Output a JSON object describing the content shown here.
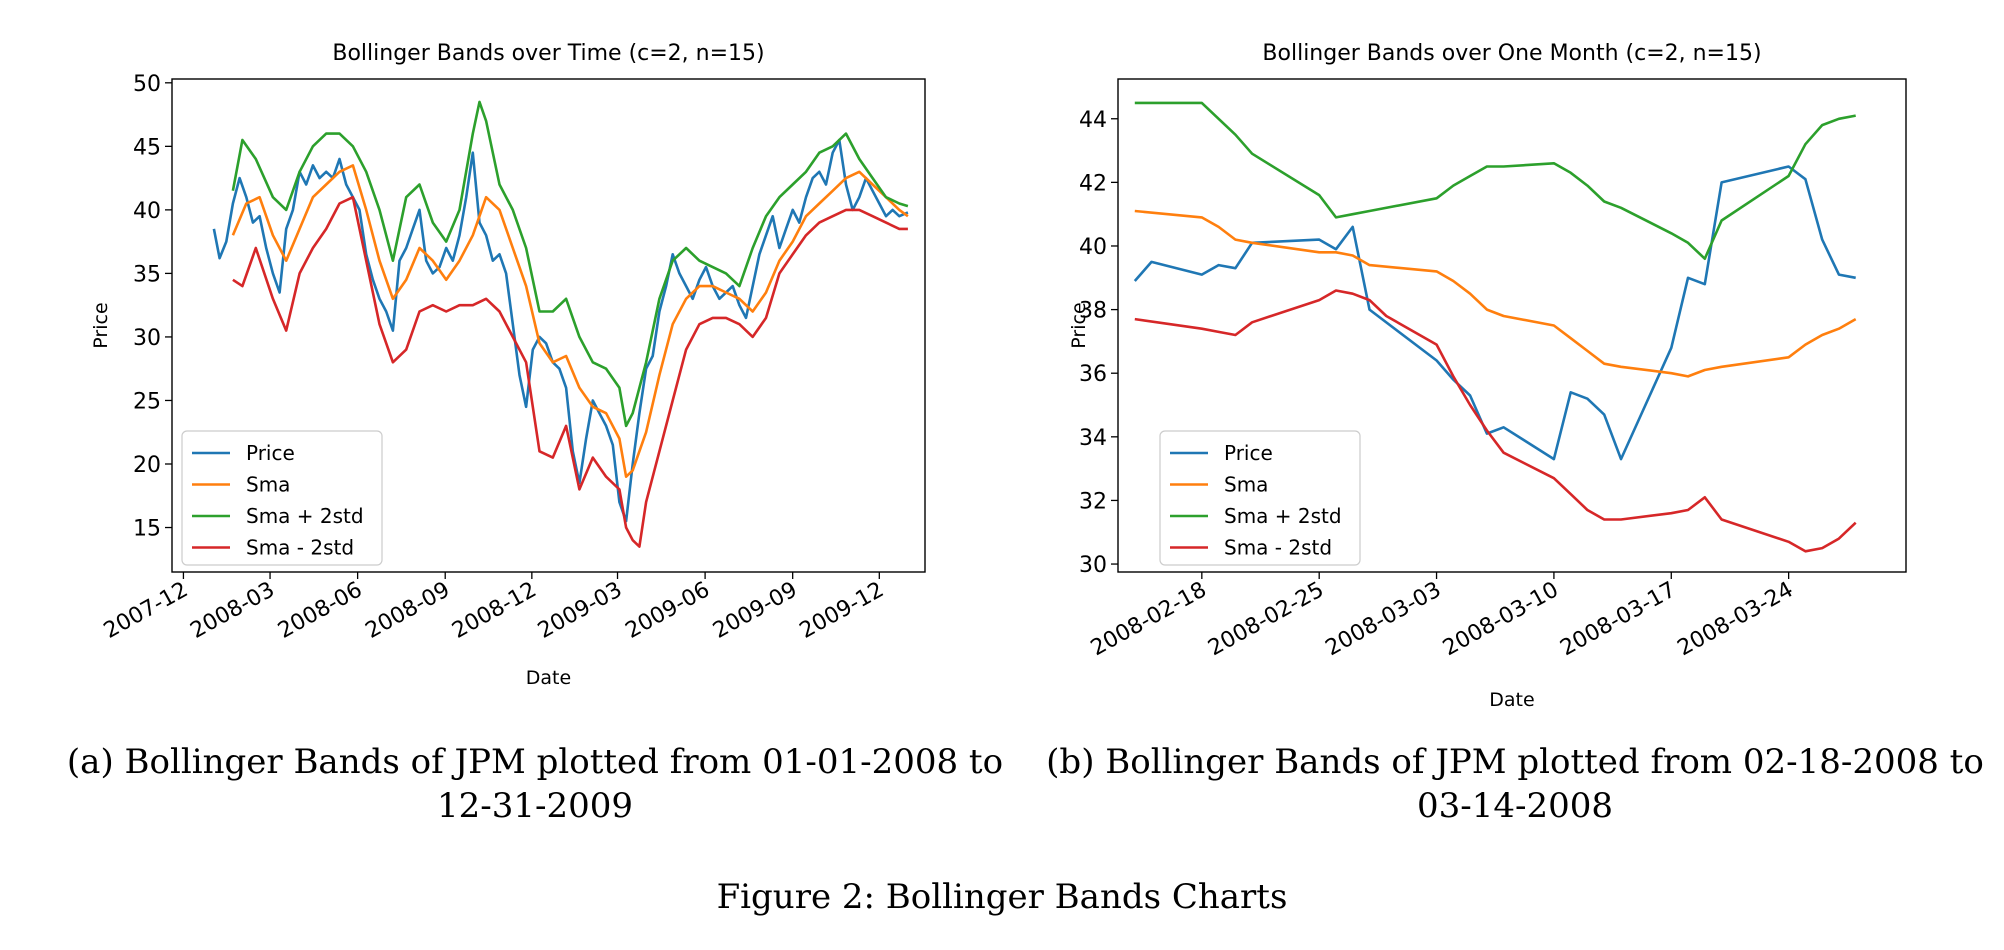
{
  "chart_data": [
    {
      "type": "line",
      "title": "Bollinger Bands over Time (c=2, n=15)",
      "xlabel": "Date",
      "ylabel": "Price",
      "xticks": [
        "2007-12",
        "2008-03",
        "2008-06",
        "2008-09",
        "2008-12",
        "2009-03",
        "2009-06",
        "2009-09",
        "2009-12"
      ],
      "yticks": [
        "15",
        "20",
        "25",
        "30",
        "35",
        "40",
        "45",
        "50"
      ],
      "xlim": [
        "2007-11-19",
        "2010-01-18"
      ],
      "ylim": [
        11.5,
        50.3
      ],
      "legend_position": "lower-left",
      "legend": [
        "Price",
        "Sma",
        "Sma + 2std",
        "Sma - 2std"
      ],
      "series": [
        {
          "name": "Price",
          "color": "#1f77b4",
          "x": [
            "2008-01-02",
            "2008-01-08",
            "2008-01-15",
            "2008-01-22",
            "2008-01-29",
            "2008-02-05",
            "2008-02-12",
            "2008-02-19",
            "2008-02-26",
            "2008-03-04",
            "2008-03-11",
            "2008-03-18",
            "2008-03-25",
            "2008-04-01",
            "2008-04-08",
            "2008-04-15",
            "2008-04-22",
            "2008-04-29",
            "2008-05-06",
            "2008-05-13",
            "2008-05-20",
            "2008-05-27",
            "2008-06-03",
            "2008-06-10",
            "2008-06-17",
            "2008-06-24",
            "2008-07-01",
            "2008-07-08",
            "2008-07-15",
            "2008-07-22",
            "2008-07-29",
            "2008-08-05",
            "2008-08-12",
            "2008-08-19",
            "2008-08-26",
            "2008-09-02",
            "2008-09-09",
            "2008-09-16",
            "2008-09-23",
            "2008-09-30",
            "2008-10-07",
            "2008-10-14",
            "2008-10-21",
            "2008-10-28",
            "2008-11-04",
            "2008-11-11",
            "2008-11-18",
            "2008-11-25",
            "2008-12-02",
            "2008-12-09",
            "2008-12-16",
            "2008-12-23",
            "2008-12-30",
            "2009-01-06",
            "2009-01-13",
            "2009-01-20",
            "2009-01-27",
            "2009-02-03",
            "2009-02-10",
            "2009-02-17",
            "2009-02-24",
            "2009-03-03",
            "2009-03-10",
            "2009-03-17",
            "2009-03-24",
            "2009-03-31",
            "2009-04-07",
            "2009-04-14",
            "2009-04-21",
            "2009-04-28",
            "2009-05-05",
            "2009-05-12",
            "2009-05-19",
            "2009-05-26",
            "2009-06-02",
            "2009-06-09",
            "2009-06-16",
            "2009-06-23",
            "2009-06-30",
            "2009-07-07",
            "2009-07-14",
            "2009-07-21",
            "2009-07-28",
            "2009-08-04",
            "2009-08-11",
            "2009-08-18",
            "2009-08-25",
            "2009-09-01",
            "2009-09-08",
            "2009-09-15",
            "2009-09-22",
            "2009-09-29",
            "2009-10-06",
            "2009-10-13",
            "2009-10-20",
            "2009-10-27",
            "2009-11-03",
            "2009-11-10",
            "2009-11-17",
            "2009-11-24",
            "2009-12-01",
            "2009-12-08",
            "2009-12-15",
            "2009-12-22",
            "2009-12-31"
          ],
          "y": [
            38.5,
            36.2,
            37.5,
            40.5,
            42.5,
            41.0,
            39.0,
            39.5,
            37.0,
            35.0,
            33.5,
            38.5,
            40.0,
            43.0,
            42.0,
            43.5,
            42.5,
            43.0,
            42.5,
            44.0,
            42.0,
            41.0,
            40.0,
            36.5,
            34.5,
            33.0,
            32.0,
            30.5,
            36.0,
            37.0,
            38.5,
            40.0,
            36.0,
            35.0,
            35.5,
            37.0,
            36.0,
            38.0,
            41.0,
            44.5,
            39.0,
            38.0,
            36.0,
            36.5,
            35.0,
            31.0,
            27.0,
            24.5,
            29.0,
            30.0,
            29.5,
            28.0,
            27.5,
            26.0,
            21.0,
            18.5,
            22.0,
            25.0,
            24.0,
            23.0,
            21.5,
            17.0,
            15.5,
            20.0,
            24.0,
            27.5,
            28.5,
            32.0,
            34.0,
            36.5,
            35.0,
            34.0,
            33.0,
            34.5,
            35.5,
            34.0,
            33.0,
            33.5,
            34.0,
            32.5,
            31.5,
            34.0,
            36.5,
            38.0,
            39.5,
            37.0,
            38.5,
            40.0,
            39.0,
            41.0,
            42.5,
            43.0,
            42.0,
            44.5,
            45.5,
            42.0,
            40.0,
            41.0,
            42.5,
            41.5,
            40.5,
            39.5,
            40.0,
            39.5,
            39.8
          ]
        },
        {
          "name": "Sma",
          "color": "#ff7f0e",
          "x": [
            "2008-01-22",
            "2008-02-05",
            "2008-02-19",
            "2008-03-04",
            "2008-03-18",
            "2008-04-01",
            "2008-04-15",
            "2008-04-29",
            "2008-05-13",
            "2008-05-27",
            "2008-06-10",
            "2008-06-24",
            "2008-07-08",
            "2008-07-22",
            "2008-08-05",
            "2008-08-19",
            "2008-09-02",
            "2008-09-16",
            "2008-09-30",
            "2008-10-14",
            "2008-10-28",
            "2008-11-11",
            "2008-11-25",
            "2008-12-09",
            "2008-12-23",
            "2009-01-06",
            "2009-01-20",
            "2009-02-03",
            "2009-02-17",
            "2009-03-03",
            "2009-03-10",
            "2009-03-17",
            "2009-03-31",
            "2009-04-14",
            "2009-04-28",
            "2009-05-12",
            "2009-05-26",
            "2009-06-09",
            "2009-06-23",
            "2009-07-07",
            "2009-07-21",
            "2009-08-04",
            "2009-08-18",
            "2009-09-01",
            "2009-09-15",
            "2009-09-29",
            "2009-10-13",
            "2009-10-27",
            "2009-11-10",
            "2009-11-24",
            "2009-12-08",
            "2009-12-22",
            "2009-12-31"
          ],
          "y": [
            38.0,
            40.5,
            41.0,
            38.0,
            36.0,
            38.5,
            41.0,
            42.0,
            43.0,
            43.5,
            40.0,
            36.0,
            33.0,
            34.5,
            37.0,
            36.0,
            34.5,
            36.0,
            38.0,
            41.0,
            40.0,
            37.0,
            34.0,
            29.5,
            28.0,
            28.5,
            26.0,
            24.5,
            24.0,
            22.0,
            19.0,
            19.5,
            22.5,
            27.0,
            31.0,
            33.0,
            34.0,
            34.0,
            33.5,
            33.0,
            32.0,
            33.5,
            36.0,
            37.5,
            39.5,
            40.5,
            41.5,
            42.5,
            43.0,
            42.0,
            41.0,
            40.0,
            39.5
          ]
        },
        {
          "name": "Sma + 2std",
          "color": "#2ca02c",
          "x": [
            "2008-01-22",
            "2008-02-01",
            "2008-02-15",
            "2008-03-04",
            "2008-03-18",
            "2008-04-01",
            "2008-04-15",
            "2008-04-29",
            "2008-05-13",
            "2008-05-27",
            "2008-06-10",
            "2008-06-24",
            "2008-07-08",
            "2008-07-22",
            "2008-08-05",
            "2008-08-19",
            "2008-09-02",
            "2008-09-16",
            "2008-09-30",
            "2008-10-07",
            "2008-10-14",
            "2008-10-28",
            "2008-11-11",
            "2008-11-25",
            "2008-12-09",
            "2008-12-23",
            "2009-01-06",
            "2009-01-20",
            "2009-02-03",
            "2009-02-17",
            "2009-03-03",
            "2009-03-10",
            "2009-03-17",
            "2009-03-31",
            "2009-04-14",
            "2009-04-28",
            "2009-05-12",
            "2009-05-26",
            "2009-06-09",
            "2009-06-23",
            "2009-07-07",
            "2009-07-21",
            "2009-08-04",
            "2009-08-18",
            "2009-09-01",
            "2009-09-15",
            "2009-09-29",
            "2009-10-13",
            "2009-10-27",
            "2009-11-10",
            "2009-11-24",
            "2009-12-08",
            "2009-12-22",
            "2009-12-31"
          ],
          "y": [
            41.5,
            45.5,
            44.0,
            41.0,
            40.0,
            43.0,
            45.0,
            46.0,
            46.0,
            45.0,
            43.0,
            40.0,
            36.0,
            41.0,
            42.0,
            39.0,
            37.5,
            40.0,
            46.0,
            48.5,
            47.0,
            42.0,
            40.0,
            37.0,
            32.0,
            32.0,
            33.0,
            30.0,
            28.0,
            27.5,
            26.0,
            23.0,
            24.0,
            28.0,
            33.0,
            36.0,
            37.0,
            36.0,
            35.5,
            35.0,
            34.0,
            37.0,
            39.5,
            41.0,
            42.0,
            43.0,
            44.5,
            45.0,
            46.0,
            44.0,
            42.5,
            41.0,
            40.5,
            40.3
          ]
        },
        {
          "name": "Sma - 2std",
          "color": "#d62728",
          "x": [
            "2008-01-22",
            "2008-02-01",
            "2008-02-15",
            "2008-03-04",
            "2008-03-18",
            "2008-04-01",
            "2008-04-15",
            "2008-04-29",
            "2008-05-13",
            "2008-05-27",
            "2008-06-10",
            "2008-06-24",
            "2008-07-08",
            "2008-07-22",
            "2008-08-05",
            "2008-08-19",
            "2008-09-02",
            "2008-09-16",
            "2008-09-30",
            "2008-10-14",
            "2008-10-28",
            "2008-11-11",
            "2008-11-25",
            "2008-12-09",
            "2008-12-23",
            "2009-01-06",
            "2009-01-20",
            "2009-02-03",
            "2009-02-17",
            "2009-03-03",
            "2009-03-10",
            "2009-03-17",
            "2009-03-24",
            "2009-03-31",
            "2009-04-14",
            "2009-04-28",
            "2009-05-12",
            "2009-05-26",
            "2009-06-09",
            "2009-06-23",
            "2009-07-07",
            "2009-07-21",
            "2009-08-04",
            "2009-08-18",
            "2009-09-01",
            "2009-09-15",
            "2009-09-29",
            "2009-10-13",
            "2009-10-27",
            "2009-11-10",
            "2009-11-24",
            "2009-12-08",
            "2009-12-22",
            "2009-12-31"
          ],
          "y": [
            34.5,
            34.0,
            37.0,
            33.0,
            30.5,
            35.0,
            37.0,
            38.5,
            40.5,
            41.0,
            36.0,
            31.0,
            28.0,
            29.0,
            32.0,
            32.5,
            32.0,
            32.5,
            32.5,
            33.0,
            32.0,
            30.0,
            28.0,
            21.0,
            20.5,
            23.0,
            18.0,
            20.5,
            19.0,
            18.0,
            15.0,
            14.0,
            13.5,
            17.0,
            21.0,
            25.0,
            29.0,
            31.0,
            31.5,
            31.5,
            31.0,
            30.0,
            31.5,
            35.0,
            36.5,
            38.0,
            39.0,
            39.5,
            40.0,
            40.0,
            39.5,
            39.0,
            38.5,
            38.5
          ]
        }
      ]
    },
    {
      "type": "line",
      "title": "Bollinger Bands over One Month (c=2, n=15)",
      "xlabel": "Date",
      "ylabel": "Price",
      "xticks": [
        "2008-02-18",
        "2008-02-25",
        "2008-03-03",
        "2008-03-10",
        "2008-03-17",
        "2008-03-24"
      ],
      "yticks": [
        "30",
        "32",
        "34",
        "36",
        "38",
        "40",
        "42",
        "44"
      ],
      "xlim": [
        "2008-02-13",
        "2008-03-31"
      ],
      "ylim": [
        29.75,
        45.25
      ],
      "legend_position": "lower-left",
      "legend": [
        "Price",
        "Sma",
        "Sma + 2std",
        "Sma - 2std"
      ],
      "series": [
        {
          "name": "Price",
          "color": "#1f77b4",
          "x": [
            "2008-02-14",
            "2008-02-15",
            "2008-02-18",
            "2008-02-19",
            "2008-02-20",
            "2008-02-21",
            "2008-02-25",
            "2008-02-26",
            "2008-02-27",
            "2008-02-28",
            "2008-03-03",
            "2008-03-04",
            "2008-03-05",
            "2008-03-06",
            "2008-03-07",
            "2008-03-10",
            "2008-03-11",
            "2008-03-12",
            "2008-03-13",
            "2008-03-14",
            "2008-03-17",
            "2008-03-18",
            "2008-03-19",
            "2008-03-20",
            "2008-03-24",
            "2008-03-25",
            "2008-03-26",
            "2008-03-27",
            "2008-03-28"
          ],
          "y": [
            38.9,
            39.5,
            39.1,
            39.4,
            39.3,
            40.1,
            40.2,
            39.9,
            40.6,
            38.0,
            36.4,
            35.8,
            35.3,
            34.1,
            34.3,
            33.3,
            35.4,
            35.2,
            34.7,
            33.3,
            36.8,
            39.0,
            38.8,
            42.0,
            42.5,
            42.1,
            40.2,
            39.1,
            39.0
          ]
        },
        {
          "name": "Sma",
          "color": "#ff7f0e",
          "x": [
            "2008-02-14",
            "2008-02-18",
            "2008-02-19",
            "2008-02-20",
            "2008-02-21",
            "2008-02-25",
            "2008-02-26",
            "2008-02-27",
            "2008-02-28",
            "2008-03-03",
            "2008-03-04",
            "2008-03-05",
            "2008-03-06",
            "2008-03-07",
            "2008-03-10",
            "2008-03-11",
            "2008-03-12",
            "2008-03-13",
            "2008-03-14",
            "2008-03-17",
            "2008-03-18",
            "2008-03-19",
            "2008-03-20",
            "2008-03-24",
            "2008-03-25",
            "2008-03-26",
            "2008-03-27",
            "2008-03-28"
          ],
          "y": [
            41.1,
            40.9,
            40.6,
            40.2,
            40.1,
            39.8,
            39.8,
            39.7,
            39.4,
            39.2,
            38.9,
            38.5,
            38.0,
            37.8,
            37.5,
            37.1,
            36.7,
            36.3,
            36.2,
            36.0,
            35.9,
            36.1,
            36.2,
            36.5,
            36.9,
            37.2,
            37.4,
            37.7
          ]
        },
        {
          "name": "Sma + 2std",
          "color": "#2ca02c",
          "x": [
            "2008-02-14",
            "2008-02-15",
            "2008-02-18",
            "2008-02-19",
            "2008-02-20",
            "2008-02-21",
            "2008-02-25",
            "2008-02-26",
            "2008-02-27",
            "2008-02-28",
            "2008-03-03",
            "2008-03-04",
            "2008-03-05",
            "2008-03-06",
            "2008-03-07",
            "2008-03-10",
            "2008-03-11",
            "2008-03-12",
            "2008-03-13",
            "2008-03-14",
            "2008-03-17",
            "2008-03-18",
            "2008-03-19",
            "2008-03-20",
            "2008-03-24",
            "2008-03-25",
            "2008-03-26",
            "2008-03-27",
            "2008-03-28"
          ],
          "y": [
            44.5,
            44.5,
            44.5,
            44.0,
            43.5,
            42.9,
            41.6,
            40.9,
            41.0,
            41.1,
            41.5,
            41.9,
            42.2,
            42.5,
            42.5,
            42.6,
            42.3,
            41.9,
            41.4,
            41.2,
            40.4,
            40.1,
            39.6,
            40.8,
            42.2,
            43.2,
            43.8,
            44.0,
            44.1
          ]
        },
        {
          "name": "Sma - 2std",
          "color": "#d62728",
          "x": [
            "2008-02-14",
            "2008-02-18",
            "2008-02-19",
            "2008-02-20",
            "2008-02-21",
            "2008-02-25",
            "2008-02-26",
            "2008-02-27",
            "2008-02-28",
            "2008-02-29",
            "2008-03-03",
            "2008-03-04",
            "2008-03-05",
            "2008-03-06",
            "2008-03-07",
            "2008-03-10",
            "2008-03-11",
            "2008-03-12",
            "2008-03-13",
            "2008-03-14",
            "2008-03-17",
            "2008-03-18",
            "2008-03-19",
            "2008-03-20",
            "2008-03-24",
            "2008-03-25",
            "2008-03-26",
            "2008-03-27",
            "2008-03-28"
          ],
          "y": [
            37.7,
            37.4,
            37.3,
            37.2,
            37.6,
            38.3,
            38.6,
            38.5,
            38.3,
            37.8,
            36.9,
            35.9,
            35.0,
            34.2,
            33.5,
            32.7,
            32.2,
            31.7,
            31.4,
            31.4,
            31.6,
            31.7,
            32.1,
            31.4,
            30.7,
            30.4,
            30.5,
            30.8,
            31.3
          ]
        }
      ]
    }
  ],
  "captions": {
    "a": "(a) Bollinger Bands of JPM plotted from 01-01-2008 to 12-31-2009",
    "b": "(b) Bollinger Bands of JPM plotted from 02-18-2008 to 03-14-2008",
    "figure": "Figure 2: Bollinger Bands Charts"
  }
}
